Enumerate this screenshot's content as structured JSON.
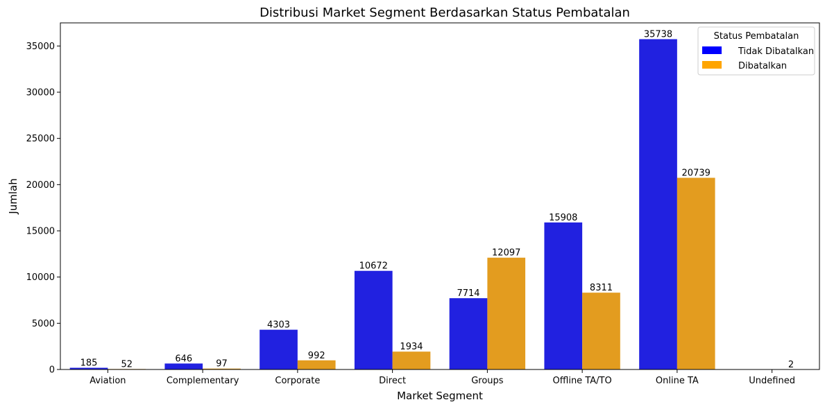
{
  "chart_data": {
    "type": "bar",
    "title": "Distribusi Market Segment Berdasarkan Status Pembatalan",
    "xlabel": "Market Segment",
    "ylabel": "Jumlah",
    "categories": [
      "Aviation",
      "Complementary",
      "Corporate",
      "Direct",
      "Groups",
      "Offline TA/TO",
      "Online TA",
      "Undefined"
    ],
    "series": [
      {
        "name": "Tidak Dibatalkan",
        "color": "#2121e0",
        "legend_color": "#0000ff",
        "values": [
          185,
          646,
          4303,
          10672,
          7714,
          15908,
          35738,
          0
        ],
        "labels": [
          "185",
          "646",
          "4303",
          "10672",
          "7714",
          "15908",
          "35738",
          ""
        ]
      },
      {
        "name": "Dibatalkan",
        "color": "#e39c1f",
        "legend_color": "#ffa500",
        "values": [
          52,
          97,
          992,
          1934,
          12097,
          8311,
          20739,
          2
        ],
        "labels": [
          "52",
          "97",
          "992",
          "1934",
          "12097",
          "8311",
          "20739",
          "2"
        ]
      }
    ],
    "ylim": [
      0,
      37500
    ],
    "yticks": [
      0,
      5000,
      10000,
      15000,
      20000,
      25000,
      30000,
      35000
    ],
    "legend": {
      "title": "Status Pembatalan",
      "placement": "top-right"
    },
    "grid": false
  }
}
